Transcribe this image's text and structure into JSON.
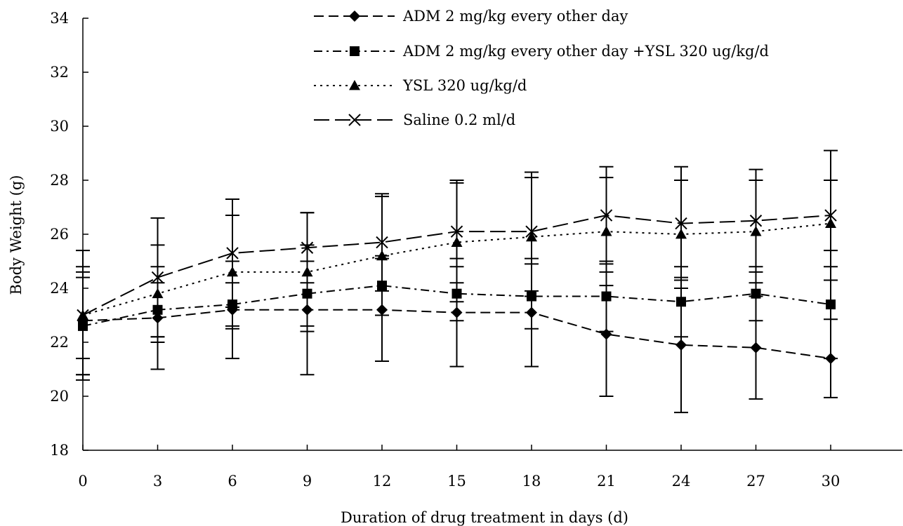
{
  "chart_data": {
    "type": "line",
    "title": "",
    "xlabel": "Duration of drug treatment in days (d)",
    "ylabel": "Body Weight (g)",
    "x": [
      0,
      3,
      6,
      9,
      12,
      15,
      18,
      21,
      24,
      27,
      30
    ],
    "xlim": [
      0,
      33
    ],
    "ylim": [
      18,
      34
    ],
    "yticks": [
      18,
      20,
      22,
      24,
      26,
      28,
      30,
      32,
      34
    ],
    "xticks": [
      0,
      3,
      6,
      9,
      12,
      15,
      18,
      21,
      24,
      27,
      30
    ],
    "grid": false,
    "legend_position": "top",
    "series": [
      {
        "name": "ADM 2 mg/kg every other day",
        "marker": "diamond",
        "line_style": "dashed",
        "values": [
          22.8,
          22.9,
          23.2,
          23.2,
          23.2,
          23.1,
          23.1,
          22.3,
          21.9,
          21.8,
          21.4
        ],
        "error": [
          2.0,
          1.9,
          1.8,
          2.4,
          1.9,
          2.0,
          2.0,
          2.3,
          2.5,
          1.9,
          1.45
        ]
      },
      {
        "name": "ADM 2 mg/kg every other day +YSL 320 ug/kg/d",
        "marker": "square",
        "line_style": "dashdot",
        "values": [
          22.6,
          23.2,
          23.4,
          23.8,
          24.1,
          23.8,
          23.7,
          23.7,
          23.5,
          23.8,
          23.4
        ],
        "error": [
          1.8,
          1.0,
          0.8,
          1.2,
          1.1,
          1.0,
          1.2,
          1.3,
          1.3,
          1.0,
          2.0
        ]
      },
      {
        "name": "YSL 320 ug/kg/d",
        "marker": "triangle",
        "line_style": "dotted",
        "values": [
          23.0,
          23.8,
          24.6,
          24.6,
          25.2,
          25.7,
          25.9,
          26.1,
          26.0,
          26.1,
          26.4
        ],
        "error": [
          1.6,
          1.8,
          2.1,
          2.2,
          2.2,
          2.2,
          2.2,
          2.0,
          2.0,
          1.9,
          1.6
        ]
      },
      {
        "name": "Saline 0.2 ml/d",
        "marker": "x",
        "line_style": "longdash",
        "values": [
          23.0,
          24.4,
          25.3,
          25.5,
          25.7,
          26.1,
          26.1,
          26.7,
          26.4,
          26.5,
          26.7
        ],
        "error": [
          2.4,
          2.2,
          2.0,
          1.3,
          1.8,
          1.9,
          2.2,
          1.8,
          2.1,
          1.9,
          2.4
        ]
      }
    ]
  }
}
